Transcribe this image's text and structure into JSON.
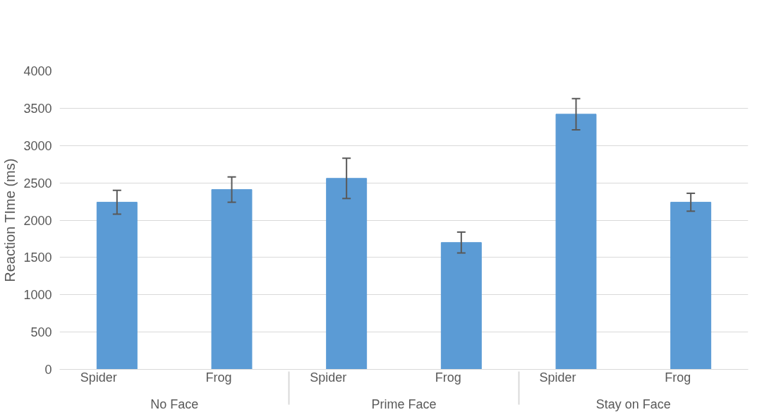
{
  "chart_data": {
    "type": "bar",
    "ylabel": "Reaction TIme (ms)",
    "categories": [
      "Spider",
      "Frog",
      "Spider",
      "Frog",
      "Spider",
      "Frog"
    ],
    "annotations": [
      "No Face",
      "Prime Face",
      "Stay on Face"
    ],
    "values": [
      2240,
      2410,
      2560,
      1700,
      3420,
      2240
    ],
    "errors": [
      160,
      170,
      270,
      140,
      210,
      120
    ],
    "color": "#5b9bd5",
    "ylim": [
      0,
      4000
    ],
    "yticks": [
      0,
      500,
      1000,
      1500,
      2000,
      2500,
      3000,
      3500,
      4000
    ],
    "grid": "y"
  }
}
